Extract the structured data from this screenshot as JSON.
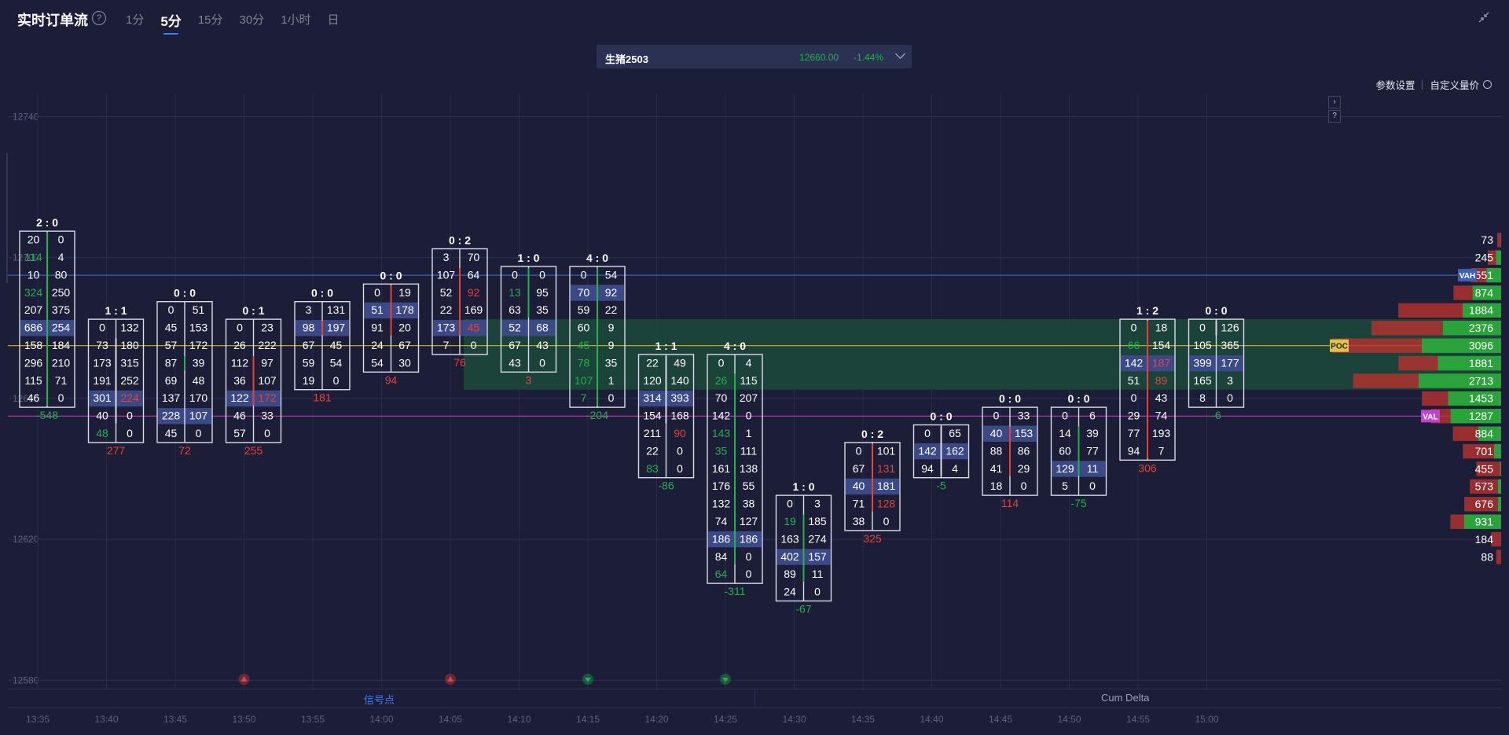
{
  "header": {
    "title": "实时订单流",
    "help": "?",
    "tabs": [
      {
        "label": "1分",
        "active": false
      },
      {
        "label": "5分",
        "active": true
      },
      {
        "label": "15分",
        "active": false
      },
      {
        "label": "30分",
        "active": false
      },
      {
        "label": "1小时",
        "active": false
      },
      {
        "label": "日",
        "active": false
      }
    ],
    "collapse_icon": "collapse-icon"
  },
  "symbol": {
    "name": "生猪2503",
    "price": "12660.00",
    "change": "-1.44%"
  },
  "settings": {
    "params": "参数设置",
    "custom_volume": "自定义量价"
  },
  "side_buttons": {
    "expand": "›",
    "help": "?"
  },
  "bottom": {
    "signal": "信号点",
    "cum_delta": "Cum Delta"
  },
  "colors": {
    "background": "#1b1e36",
    "up": "#22b14c",
    "down": "#e8413b",
    "highlight": "#3b4a86",
    "value_area": "#1c4a3a",
    "vah_line": "#3d5fb5",
    "val_line": "#b040b5",
    "poc_line": "#c8b43a"
  },
  "chart_data": {
    "type": "footprint",
    "price_axis": {
      "ticks": [
        12740,
        12700,
        12660,
        12620,
        12580
      ],
      "ylim": [
        12580,
        12740
      ],
      "step": 5
    },
    "time_axis": [
      "13:35",
      "13:40",
      "13:45",
      "13:50",
      "13:55",
      "14:00",
      "14:05",
      "14:10",
      "14:15",
      "14:20",
      "14:25",
      "14:30",
      "14:35",
      "14:40",
      "14:45",
      "14:50",
      "14:55",
      "15:00"
    ],
    "bars": [
      {
        "time": "13:35",
        "ratio": "2 : 0",
        "top": 12705,
        "rows": [
          [
            "20",
            "0"
          ],
          [
            "114",
            "4"
          ],
          [
            "10",
            "80"
          ],
          [
            "324",
            "250"
          ],
          [
            "207",
            "375"
          ],
          [
            "686",
            "254"
          ],
          [
            "158",
            "184"
          ],
          [
            "296",
            "210"
          ],
          [
            "115",
            "71"
          ],
          [
            "46",
            "0"
          ]
        ],
        "green": [
          [
            1,
            0
          ],
          [
            3,
            0
          ]
        ],
        "red": [],
        "hl": [
          5
        ],
        "delta": "-548",
        "line": "green",
        "span": [
          0,
          9
        ]
      },
      {
        "time": "13:40",
        "ratio": "1 : 1",
        "top": 12680,
        "rows": [
          [
            "0",
            "132"
          ],
          [
            "73",
            "180"
          ],
          [
            "173",
            "315"
          ],
          [
            "191",
            "252"
          ],
          [
            "301",
            "224"
          ],
          [
            "40",
            "0"
          ],
          [
            "48",
            "0"
          ]
        ],
        "green": [
          [
            6,
            0
          ]
        ],
        "red": [
          [
            4,
            1
          ]
        ],
        "hl": [
          4
        ],
        "delta": "277",
        "line": "white",
        "span": [
          1,
          5
        ]
      },
      {
        "time": "13:45",
        "ratio": "0 : 0",
        "top": 12685,
        "rows": [
          [
            "0",
            "51"
          ],
          [
            "45",
            "153"
          ],
          [
            "57",
            "172"
          ],
          [
            "87",
            "39"
          ],
          [
            "69",
            "48"
          ],
          [
            "137",
            "170"
          ],
          [
            "228",
            "107"
          ],
          [
            "45",
            "0"
          ]
        ],
        "green": [],
        "red": [],
        "hl": [
          6
        ],
        "delta": "72",
        "line": "green",
        "span": [
          3,
          3
        ]
      },
      {
        "time": "13:50",
        "ratio": "0 : 1",
        "top": 12680,
        "rows": [
          [
            "0",
            "23"
          ],
          [
            "26",
            "222"
          ],
          [
            "112",
            "97"
          ],
          [
            "36",
            "107"
          ],
          [
            "122",
            "172"
          ],
          [
            "46",
            "33"
          ],
          [
            "57",
            "0"
          ]
        ],
        "green": [],
        "red": [
          [
            4,
            1
          ]
        ],
        "hl": [
          4
        ],
        "delta": "255",
        "line": "red",
        "span": [
          2,
          4
        ]
      },
      {
        "time": "13:55",
        "ratio": "0 : 0",
        "top": 12685,
        "rows": [
          [
            "3",
            "131"
          ],
          [
            "98",
            "197"
          ],
          [
            "67",
            "45"
          ],
          [
            "59",
            "54"
          ],
          [
            "19",
            "0"
          ]
        ],
        "green": [],
        "red": [],
        "hl": [
          1
        ],
        "delta": "181",
        "line": "red",
        "span": [
          1,
          1
        ]
      },
      {
        "time": "14:00",
        "ratio": "0 : 0",
        "top": 12690,
        "rows": [
          [
            "0",
            "19"
          ],
          [
            "51",
            "178"
          ],
          [
            "91",
            "20"
          ],
          [
            "24",
            "67"
          ],
          [
            "54",
            "30"
          ]
        ],
        "green": [],
        "red": [],
        "hl": [
          1
        ],
        "delta": "94",
        "line": "red",
        "span": [
          0,
          2
        ]
      },
      {
        "time": "14:05",
        "ratio": "0 : 2",
        "top": 12700,
        "rows": [
          [
            "3",
            "70"
          ],
          [
            "107",
            "64"
          ],
          [
            "52",
            "92"
          ],
          [
            "22",
            "169"
          ],
          [
            "173",
            "45"
          ],
          [
            "7",
            "0"
          ]
        ],
        "green": [],
        "red": [
          [
            2,
            1
          ],
          [
            4,
            1
          ]
        ],
        "hl": [
          4
        ],
        "delta": "76",
        "line": "red",
        "span": [
          1,
          4
        ]
      },
      {
        "time": "14:10",
        "ratio": "1 : 0",
        "top": 12695,
        "rows": [
          [
            "0",
            "0"
          ],
          [
            "13",
            "95"
          ],
          [
            "63",
            "35"
          ],
          [
            "52",
            "68"
          ],
          [
            "67",
            "43"
          ],
          [
            "43",
            "0"
          ]
        ],
        "green": [
          [
            1,
            0
          ]
        ],
        "red": [],
        "hl": [
          3
        ],
        "delta": "3",
        "line": "green",
        "span": [
          0,
          2
        ]
      },
      {
        "time": "14:15",
        "ratio": "4 : 0",
        "top": 12695,
        "rows": [
          [
            "0",
            "54"
          ],
          [
            "70",
            "92"
          ],
          [
            "59",
            "22"
          ],
          [
            "60",
            "9"
          ],
          [
            "45",
            "9"
          ],
          [
            "78",
            "35"
          ],
          [
            "107",
            "1"
          ],
          [
            "7",
            "0"
          ]
        ],
        "green": [
          [
            4,
            0
          ],
          [
            5,
            0
          ],
          [
            6,
            0
          ],
          [
            7,
            0
          ]
        ],
        "red": [],
        "hl": [
          1
        ],
        "delta": "-204",
        "line": "green",
        "span": [
          0,
          7
        ]
      },
      {
        "time": "14:20",
        "ratio": "1 : 1",
        "top": 12670,
        "rows": [
          [
            "22",
            "49"
          ],
          [
            "120",
            "140"
          ],
          [
            "314",
            "393"
          ],
          [
            "154",
            "168"
          ],
          [
            "211",
            "90"
          ],
          [
            "22",
            "0"
          ],
          [
            "83",
            "0"
          ]
        ],
        "green": [
          [
            6,
            0
          ]
        ],
        "red": [
          [
            4,
            1
          ]
        ],
        "hl": [
          2
        ],
        "delta": "-86",
        "line": "white",
        "span": [
          0,
          3
        ]
      },
      {
        "time": "14:25",
        "ratio": "4 : 0",
        "top": 12670,
        "rows": [
          [
            "0",
            "4"
          ],
          [
            "26",
            "115"
          ],
          [
            "70",
            "207"
          ],
          [
            "142",
            "0"
          ],
          [
            "143",
            "1"
          ],
          [
            "35",
            "111"
          ],
          [
            "161",
            "138"
          ],
          [
            "176",
            "55"
          ],
          [
            "132",
            "38"
          ],
          [
            "74",
            "127"
          ],
          [
            "186",
            "186"
          ],
          [
            "84",
            "0"
          ],
          [
            "64",
            "0"
          ]
        ],
        "green": [
          [
            1,
            0
          ],
          [
            4,
            0
          ],
          [
            5,
            0
          ],
          [
            12,
            0
          ]
        ],
        "red": [],
        "hl": [
          10
        ],
        "delta": "-311",
        "line": "green",
        "span": [
          1,
          11
        ]
      },
      {
        "time": "14:30",
        "ratio": "1 : 0",
        "top": 12630,
        "rows": [
          [
            "0",
            "3"
          ],
          [
            "19",
            "185"
          ],
          [
            "163",
            "274"
          ],
          [
            "402",
            "157"
          ],
          [
            "89",
            "11"
          ],
          [
            "24",
            "0"
          ]
        ],
        "green": [
          [
            1,
            0
          ]
        ],
        "red": [],
        "hl": [
          3
        ],
        "delta": "-67",
        "line": "green",
        "span": [
          1,
          4
        ]
      },
      {
        "time": "14:35",
        "ratio": "0 : 2",
        "top": 12645,
        "rows": [
          [
            "0",
            "101"
          ],
          [
            "67",
            "131"
          ],
          [
            "40",
            "181"
          ],
          [
            "71",
            "128"
          ],
          [
            "38",
            "0"
          ]
        ],
        "green": [],
        "red": [
          [
            1,
            1
          ],
          [
            3,
            1
          ]
        ],
        "hl": [
          2
        ],
        "delta": "325",
        "line": "red",
        "span": [
          0,
          3
        ]
      },
      {
        "time": "14:40",
        "ratio": "0 : 0",
        "top": 12650,
        "rows": [
          [
            "0",
            "65"
          ],
          [
            "142",
            "162"
          ],
          [
            "94",
            "4"
          ]
        ],
        "green": [],
        "red": [],
        "hl": [
          1
        ],
        "delta": "-5",
        "line": "white",
        "span": [
          0,
          2
        ]
      },
      {
        "time": "14:45",
        "ratio": "0 : 0",
        "top": 12655,
        "rows": [
          [
            "0",
            "33"
          ],
          [
            "40",
            "153"
          ],
          [
            "88",
            "86"
          ],
          [
            "41",
            "29"
          ],
          [
            "18",
            "0"
          ]
        ],
        "green": [],
        "red": [],
        "hl": [
          1
        ],
        "delta": "114",
        "line": "red",
        "span": [
          1,
          3
        ]
      },
      {
        "time": "14:50",
        "ratio": "0 : 0",
        "top": 12655,
        "rows": [
          [
            "0",
            "6"
          ],
          [
            "14",
            "39"
          ],
          [
            "60",
            "77"
          ],
          [
            "129",
            "11"
          ],
          [
            "5",
            "0"
          ]
        ],
        "green": [],
        "red": [],
        "hl": [
          3
        ],
        "delta": "-75",
        "line": "green",
        "span": [
          1,
          3
        ]
      },
      {
        "time": "14:55",
        "ratio": "1 : 2",
        "top": 12680,
        "rows": [
          [
            "0",
            "18"
          ],
          [
            "66",
            "154"
          ],
          [
            "142",
            "187"
          ],
          [
            "51",
            "89"
          ],
          [
            "0",
            "43"
          ],
          [
            "29",
            "74"
          ],
          [
            "77",
            "193"
          ],
          [
            "94",
            "7"
          ]
        ],
        "green": [
          [
            1,
            0
          ]
        ],
        "red": [
          [
            2,
            1
          ],
          [
            3,
            1
          ]
        ],
        "hl": [
          2
        ],
        "delta": "306",
        "line": "red",
        "span": [
          0,
          7
        ]
      },
      {
        "time": "15:00",
        "ratio": "0 : 0",
        "top": 12680,
        "rows": [
          [
            "0",
            "126"
          ],
          [
            "105",
            "365"
          ],
          [
            "399",
            "177"
          ],
          [
            "165",
            "3"
          ],
          [
            "8",
            "0"
          ]
        ],
        "green": [],
        "red": [],
        "hl": [
          2
        ],
        "delta": "-6",
        "line": "white",
        "span": [
          0,
          0
        ]
      }
    ],
    "volume_profile": {
      "prices": [
        12705,
        12700,
        12695,
        12690,
        12685,
        12680,
        12675,
        12670,
        12665,
        12660,
        12655,
        12650,
        12645,
        12640,
        12635,
        12630,
        12625,
        12620,
        12615,
        12610
      ],
      "totals": [
        "73",
        "245",
        "551",
        "874",
        "1884",
        "2376",
        "3096",
        "1881",
        "2713",
        "1453",
        "1287",
        "884",
        "701",
        "455",
        "573",
        "676",
        "931",
        "184",
        "88",
        ""
      ],
      "buy": [
        8,
        95,
        270,
        524,
        706,
        1066,
        1456,
        1161,
        1513,
        973,
        927,
        420,
        130,
        20,
        60,
        60,
        680,
        0,
        0,
        0
      ],
      "sell": [
        65,
        150,
        281,
        350,
        1178,
        1310,
        1640,
        720,
        1200,
        480,
        360,
        464,
        571,
        435,
        513,
        616,
        251,
        184,
        88,
        0
      ],
      "markers": {
        "VAH": 12695,
        "POC": 12675,
        "VAL": 12655
      }
    },
    "signals": [
      {
        "time": "13:50",
        "dir": "down"
      },
      {
        "time": "14:05",
        "dir": "down"
      },
      {
        "time": "14:15",
        "dir": "up"
      },
      {
        "time": "14:25",
        "dir": "up"
      }
    ]
  }
}
